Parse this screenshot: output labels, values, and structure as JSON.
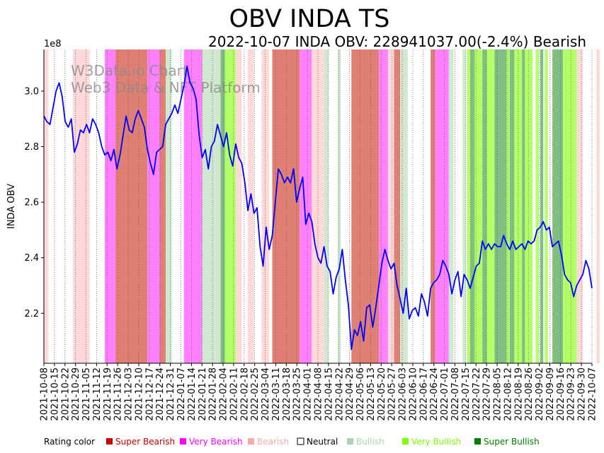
{
  "chart_data": {
    "type": "line",
    "title": "OBV INDA TS",
    "subtitle": "2022-10-07 INDA OBV: 228941037.00(-2.4%) Bearish",
    "ylabel": "INDA OBV",
    "y_multiplier": "1e8",
    "ylim": [
      2.02,
      3.15
    ],
    "y_ticks": [
      "2.2",
      "2.4",
      "2.6",
      "2.8",
      "3.0"
    ],
    "x_ticks": [
      "2021-10-08",
      "2021-10-15",
      "2021-10-22",
      "2021-10-29",
      "2021-11-05",
      "2021-11-12",
      "2021-11-19",
      "2021-11-26",
      "2021-12-03",
      "2021-12-10",
      "2021-12-17",
      "2021-12-24",
      "2021-12-31",
      "2022-01-07",
      "2022-01-14",
      "2022-01-21",
      "2022-01-28",
      "2022-02-04",
      "2022-02-11",
      "2022-02-18",
      "2022-02-25",
      "2022-03-04",
      "2022-03-11",
      "2022-03-18",
      "2022-03-25",
      "2022-04-01",
      "2022-04-08",
      "2022-04-15",
      "2022-04-22",
      "2022-04-29",
      "2022-05-06",
      "2022-05-13",
      "2022-05-20",
      "2022-05-27",
      "2022-06-03",
      "2022-06-10",
      "2022-06-17",
      "2022-06-24",
      "2022-07-01",
      "2022-07-08",
      "2022-07-15",
      "2022-07-22",
      "2022-07-29",
      "2022-08-05",
      "2022-08-12",
      "2022-08-19",
      "2022-08-26",
      "2022-09-02",
      "2022-09-09",
      "2022-09-16",
      "2022-09-23",
      "2022-09-30",
      "2022-10-07"
    ],
    "series": [
      {
        "name": "OBV",
        "color": "#0000ff",
        "values": [
          2.91,
          2.89,
          2.88,
          2.94,
          3.0,
          3.03,
          2.98,
          2.89,
          2.87,
          2.9,
          2.78,
          2.81,
          2.86,
          2.85,
          2.88,
          2.85,
          2.9,
          2.88,
          2.85,
          2.8,
          2.77,
          2.78,
          2.75,
          2.79,
          2.72,
          2.77,
          2.84,
          2.91,
          2.86,
          2.85,
          2.9,
          2.93,
          2.9,
          2.87,
          2.79,
          2.74,
          2.7,
          2.78,
          2.79,
          2.8,
          2.88,
          2.9,
          2.92,
          2.95,
          2.92,
          2.97,
          3.02,
          3.09,
          3.03,
          3.01,
          2.97,
          2.84,
          2.76,
          2.79,
          2.72,
          2.8,
          2.82,
          2.88,
          2.84,
          2.8,
          2.85,
          2.77,
          2.73,
          2.81,
          2.76,
          2.74,
          2.67,
          2.57,
          2.63,
          2.56,
          2.58,
          2.44,
          2.37,
          2.51,
          2.43,
          2.48,
          2.6,
          2.72,
          2.7,
          2.67,
          2.69,
          2.67,
          2.72,
          2.6,
          2.65,
          2.69,
          2.52,
          2.56,
          2.53,
          2.45,
          2.4,
          2.38,
          2.44,
          2.37,
          2.35,
          2.27,
          2.33,
          2.36,
          2.43,
          2.32,
          2.23,
          2.07,
          2.14,
          2.12,
          2.17,
          2.1,
          2.22,
          2.23,
          2.15,
          2.22,
          2.3,
          2.38,
          2.43,
          2.39,
          2.36,
          2.38,
          2.3,
          2.25,
          2.2,
          2.29,
          2.18,
          2.21,
          2.22,
          2.19,
          2.27,
          2.24,
          2.19,
          2.29,
          2.31,
          2.32,
          2.34,
          2.39,
          2.37,
          2.34,
          2.27,
          2.32,
          2.35,
          2.26,
          2.34,
          2.32,
          2.29,
          2.33,
          2.37,
          2.38,
          2.46,
          2.43,
          2.45,
          2.43,
          2.45,
          2.44,
          2.44,
          2.48,
          2.45,
          2.43,
          2.46,
          2.43,
          2.44,
          2.45,
          2.43,
          2.46,
          2.45,
          2.46,
          2.5,
          2.51,
          2.53,
          2.5,
          2.51,
          2.44,
          2.45,
          2.46,
          2.41,
          2.34,
          2.32,
          2.31,
          2.26,
          2.3,
          2.32,
          2.34,
          2.39,
          2.36,
          2.29
        ]
      }
    ],
    "rating_bands": [
      {
        "start": 0.0,
        "end": 1.5,
        "rating": "Bearish"
      },
      {
        "start": 9.5,
        "end": 15.0,
        "rating": "Bearish"
      },
      {
        "start": 20.0,
        "end": 23.5,
        "rating": "Very Bearish"
      },
      {
        "start": 23.5,
        "end": 34.0,
        "rating": "Super Bearish"
      },
      {
        "start": 34.0,
        "end": 38.0,
        "rating": "Very Bearish"
      },
      {
        "start": 38.0,
        "end": 40.0,
        "rating": "Super Bearish"
      },
      {
        "start": 40.0,
        "end": 42.0,
        "rating": "Bullish"
      },
      {
        "start": 46.0,
        "end": 52.0,
        "rating": "Very Bearish"
      },
      {
        "start": 52.0,
        "end": 58.0,
        "rating": "Bullish"
      },
      {
        "start": 58.0,
        "end": 59.5,
        "rating": "Super Bullish"
      },
      {
        "start": 59.5,
        "end": 63.0,
        "rating": "Very Bullish"
      },
      {
        "start": 63.0,
        "end": 65.0,
        "rating": "Bearish"
      },
      {
        "start": 67.0,
        "end": 69.0,
        "rating": "Bearish"
      },
      {
        "start": 71.5,
        "end": 74.0,
        "rating": "Bearish"
      },
      {
        "start": 75.0,
        "end": 84.0,
        "rating": "Super Bearish"
      },
      {
        "start": 84.0,
        "end": 88.0,
        "rating": "Very Bearish"
      },
      {
        "start": 88.0,
        "end": 92.0,
        "rating": "Bearish"
      },
      {
        "start": 92.0,
        "end": 93.5,
        "rating": "Bullish"
      },
      {
        "start": 96.5,
        "end": 97.5,
        "rating": "Bullish"
      },
      {
        "start": 101.0,
        "end": 110.0,
        "rating": "Super Bearish"
      },
      {
        "start": 110.0,
        "end": 113.0,
        "rating": "Very Bearish"
      },
      {
        "start": 113.0,
        "end": 115.0,
        "rating": "Bearish"
      },
      {
        "start": 115.0,
        "end": 117.0,
        "rating": "Super Bearish"
      },
      {
        "start": 117.0,
        "end": 119.5,
        "rating": "Bullish"
      },
      {
        "start": 127.0,
        "end": 128.5,
        "rating": "Super Bearish"
      },
      {
        "start": 128.5,
        "end": 133.0,
        "rating": "Very Bearish"
      },
      {
        "start": 133.0,
        "end": 134.5,
        "rating": "Bullish"
      },
      {
        "start": 137.5,
        "end": 138.5,
        "rating": "Bullish"
      },
      {
        "start": 139.0,
        "end": 140.0,
        "rating": "Very Bullish"
      },
      {
        "start": 140.0,
        "end": 141.5,
        "rating": "Super Bullish"
      },
      {
        "start": 141.5,
        "end": 144.0,
        "rating": "Very Bullish"
      },
      {
        "start": 144.0,
        "end": 145.5,
        "rating": "Super Bullish"
      },
      {
        "start": 145.5,
        "end": 148.0,
        "rating": "Very Bullish"
      },
      {
        "start": 148.0,
        "end": 152.0,
        "rating": "Super Bullish"
      },
      {
        "start": 152.0,
        "end": 153.0,
        "rating": "Very Bullish"
      },
      {
        "start": 153.0,
        "end": 154.5,
        "rating": "Super Bullish"
      },
      {
        "start": 154.5,
        "end": 157.0,
        "rating": "Very Bullish"
      },
      {
        "start": 157.0,
        "end": 158.0,
        "rating": "Super Bullish"
      },
      {
        "start": 158.0,
        "end": 160.5,
        "rating": "Very Bullish"
      },
      {
        "start": 161.5,
        "end": 162.5,
        "rating": "Very Bullish"
      },
      {
        "start": 163.0,
        "end": 164.0,
        "rating": "Super Bullish"
      },
      {
        "start": 164.5,
        "end": 165.5,
        "rating": "Very Bullish"
      },
      {
        "start": 167.0,
        "end": 170.5,
        "rating": "Super Bullish"
      },
      {
        "start": 170.5,
        "end": 175.0,
        "rating": "Very Bullish"
      },
      {
        "start": 175.0,
        "end": 177.0,
        "rating": "Bearish"
      },
      {
        "start": 181.5,
        "end": 182.5,
        "rating": "Bearish"
      }
    ],
    "legend": {
      "title": "Rating color",
      "items": [
        {
          "label": "Super Bearish",
          "color": "#cc0000",
          "band_color": "#e07f74"
        },
        {
          "label": "Very Bearish",
          "color": "#ff00ff",
          "band_color": "#ff80ff"
        },
        {
          "label": "Bearish",
          "color": "#f4aaaa",
          "band_color": "#ffd9d9"
        },
        {
          "label": "Neutral",
          "color": "#ffffff",
          "band_color": "#ffffff"
        },
        {
          "label": "Bullish",
          "color": "#a8d5a8",
          "band_color": "#d0e8d0"
        },
        {
          "label": "Very Bullish",
          "color": "#7fff00",
          "band_color": "#b3ff66"
        },
        {
          "label": "Super Bullish",
          "color": "#008000",
          "band_color": "#80bf80"
        }
      ]
    },
    "watermark": [
      "W3Data.io Chart",
      "Web3 Data & NFT Platform"
    ]
  }
}
